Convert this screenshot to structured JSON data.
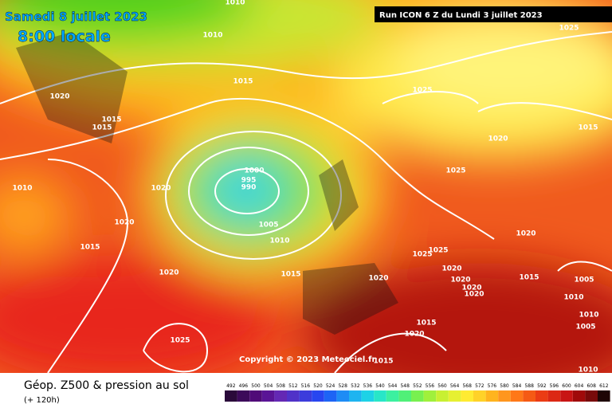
{
  "header": {
    "date": "Samedi 8 juillet 2023",
    "time": "8:00 locale",
    "run": "Run ICON 6 Z du Lundi 3 juillet 2023"
  },
  "isobars": [
    1010,
    1010,
    1015,
    1020,
    1015,
    1015,
    1025,
    1025,
    1015,
    1020,
    1025,
    1000,
    995,
    990,
    1020,
    1010,
    1020,
    1005,
    1010,
    1015,
    1020,
    1025,
    1025,
    1020,
    1020,
    1015,
    1020,
    1015,
    1005,
    1020,
    1020,
    1020,
    1010,
    1010,
    1005,
    1015,
    1020,
    1025,
    1015,
    1010
  ],
  "copyright": "Copyright © 2023 Meteociel.fr",
  "footer": {
    "title": "Géop. Z500 & pression au sol",
    "lead": "(+ 120h)"
  },
  "scale": [
    492,
    496,
    500,
    504,
    508,
    512,
    516,
    520,
    524,
    528,
    532,
    536,
    540,
    544,
    548,
    552,
    556,
    560,
    564,
    568,
    572,
    576,
    580,
    584,
    588,
    592,
    596,
    600,
    604,
    608,
    612
  ]
}
